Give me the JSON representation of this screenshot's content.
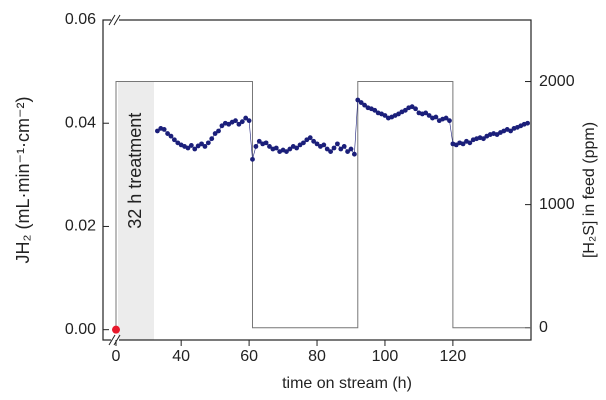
{
  "chart_data": {
    "type": "scatter",
    "xlabel": "time on stream (h)",
    "ylabel": "JH₂ (mL·min⁻¹·cm⁻²)",
    "y2label": "[H₂S] in feed (ppm)",
    "xlim": [
      -10,
      143
    ],
    "xticks": [
      0,
      40,
      60,
      80,
      100,
      120
    ],
    "ylim": [
      -0.002,
      0.06
    ],
    "yticks": [
      {
        "value": 0,
        "label": "0.00"
      },
      {
        "value": 0.02,
        "label": "0.02"
      },
      {
        "value": 0.04,
        "label": "0.04"
      },
      {
        "value": 0.06,
        "label": "0.06"
      }
    ],
    "y2lim": [
      -100,
      2500
    ],
    "y2ticks": [
      0,
      1000,
      2000
    ],
    "treatment": {
      "label": "32 h treatment",
      "x": [
        0,
        32
      ],
      "top": 2000,
      "color": "#ececec"
    },
    "series": [
      {
        "color": "#1b1f7a",
        "line": true,
        "x": [
          33,
          34,
          35,
          36,
          37,
          38,
          39,
          40,
          41,
          42,
          43,
          44,
          45,
          46,
          47,
          48,
          49,
          50,
          51,
          52,
          53,
          54,
          55,
          56,
          57,
          58,
          59,
          60,
          61,
          62,
          63,
          64,
          65,
          66,
          67,
          68,
          69,
          70,
          71,
          72,
          73,
          74,
          75,
          76,
          77,
          78,
          79,
          80,
          81,
          82,
          83,
          84,
          85,
          86,
          87,
          88,
          89,
          90,
          91,
          92,
          93,
          94,
          95,
          96,
          97,
          98,
          99,
          100,
          101,
          102,
          103,
          104,
          105,
          106,
          107,
          108,
          109,
          110,
          111,
          112,
          113,
          114,
          115,
          116,
          117,
          118,
          119,
          120,
          121,
          122,
          123,
          124,
          125,
          126,
          127,
          128,
          129,
          130,
          131,
          132,
          133,
          134,
          135,
          136,
          137,
          138,
          139,
          140,
          141,
          142
        ],
        "values": [
          0.0385,
          0.039,
          0.0388,
          0.038,
          0.0375,
          0.0368,
          0.0362,
          0.0358,
          0.0355,
          0.0352,
          0.0357,
          0.035,
          0.0356,
          0.036,
          0.0355,
          0.0362,
          0.037,
          0.038,
          0.0385,
          0.0395,
          0.04,
          0.0398,
          0.0402,
          0.0405,
          0.0398,
          0.0403,
          0.041,
          0.0405,
          0.033,
          0.0355,
          0.0365,
          0.036,
          0.0362,
          0.0355,
          0.035,
          0.0352,
          0.0345,
          0.0348,
          0.0345,
          0.035,
          0.0355,
          0.0352,
          0.0358,
          0.0362,
          0.0368,
          0.0372,
          0.0365,
          0.036,
          0.0355,
          0.0358,
          0.035,
          0.0345,
          0.0352,
          0.036,
          0.035,
          0.0355,
          0.0345,
          0.035,
          0.034,
          0.0445,
          0.044,
          0.0435,
          0.043,
          0.0428,
          0.0425,
          0.042,
          0.0418,
          0.0415,
          0.041,
          0.0412,
          0.0415,
          0.0418,
          0.0422,
          0.0425,
          0.043,
          0.0432,
          0.0428,
          0.042,
          0.0418,
          0.042,
          0.0415,
          0.041,
          0.0412,
          0.0405,
          0.0408,
          0.041,
          0.0405,
          0.036,
          0.0358,
          0.0362,
          0.036,
          0.0365,
          0.0362,
          0.0368,
          0.037,
          0.0372,
          0.037,
          0.0375,
          0.0378,
          0.038,
          0.0378,
          0.0382,
          0.0385,
          0.0388,
          0.0385,
          0.039,
          0.0392,
          0.0395,
          0.0398,
          0.04
        ]
      },
      {
        "color": "#e8192c",
        "x": [
          0
        ],
        "values": [
          0
        ]
      },
      {
        "color": "#777777",
        "axis": "y2",
        "line": true,
        "x": [
          0,
          0,
          61,
          61,
          92,
          92,
          120,
          120,
          143
        ],
        "values": [
          0,
          2000,
          2000,
          0,
          0,
          2000,
          2000,
          0,
          0
        ]
      }
    ]
  }
}
